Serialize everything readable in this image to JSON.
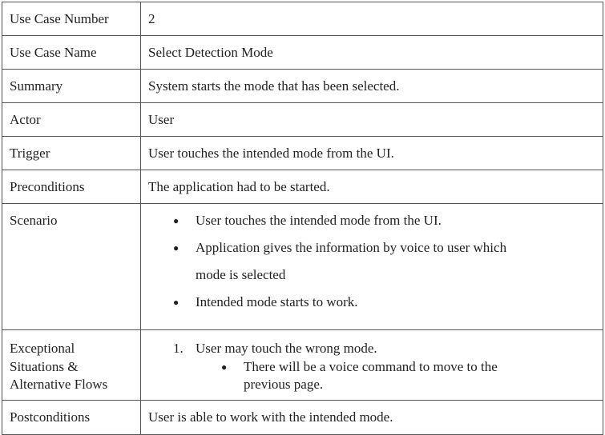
{
  "table": {
    "rows": [
      {
        "label": "Use Case Number",
        "value": "2"
      },
      {
        "label": "Use Case Name",
        "value": "Select Detection Mode"
      },
      {
        "label": "Summary",
        "value": "System starts the mode that has been selected."
      },
      {
        "label": "Actor",
        "value": "User"
      },
      {
        "label": "Trigger",
        "value": "User touches the intended mode from the UI."
      },
      {
        "label": "Preconditions",
        "value": "The application had to be started."
      }
    ],
    "scenario": {
      "label": "Scenario",
      "items": [
        "User touches the intended mode from the UI.",
        "Application gives the information by voice to user which",
        "mode is selected",
        "Intended mode starts to work."
      ]
    },
    "exceptional": {
      "label_line1": "Exceptional",
      "label_line2": "Situations &",
      "label_line3": "Alternative Flows",
      "item_number": "1.",
      "item_text": "User may touch the wrong mode.",
      "sub_item_line1": "There will be a voice command to move to the",
      "sub_item_line2": "previous page."
    },
    "postconditions": {
      "label": "Postconditions",
      "value": "User is able to work with the intended mode."
    }
  }
}
